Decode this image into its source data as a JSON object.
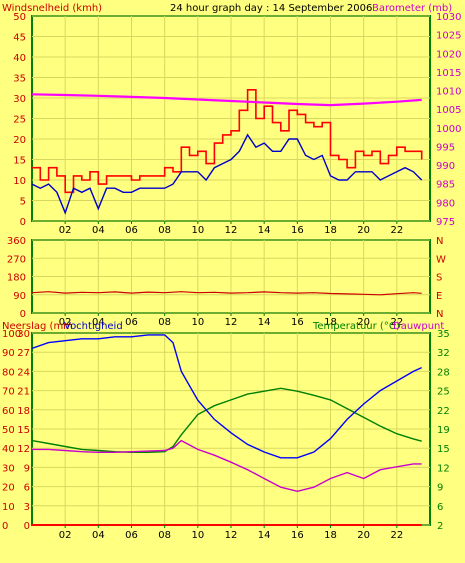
{
  "colors": {
    "background": "#FFFF80",
    "plot_bg": "#FFFF80",
    "frame": "#008000",
    "grid": "#D8D860",
    "gust": "#FF0000",
    "wind_avg": "#0000CC",
    "barometer": "#FF00FF",
    "wind_dir": "#CC0000",
    "humidity": "#0000FF",
    "temperature": "#008000",
    "dewpoint": "#CC00CC",
    "rain": "#FF0000",
    "axis_left": "#CC0000",
    "axis_right_top": "#CC00CC",
    "axis_right_bottom": "#008000",
    "text_dark": "#000000"
  },
  "header": {
    "left_label": "Windsnelheid (kmh)",
    "center_title": "24 hour graph day : 14 September 2006",
    "right_label": "Barometer (mb)"
  },
  "bottom_header": {
    "rain_label": "Neerslag (mm",
    "humidity_label": "Vochtigheid",
    "temp_label": "Temperatuur (°C)",
    "dew_label": "Dauwpunt"
  },
  "chart_data": [
    {
      "type": "line",
      "x_ticks": [
        "02",
        "04",
        "06",
        "08",
        "10",
        "12",
        "14",
        "16",
        "18",
        "20",
        "22"
      ],
      "y_left_ticks": [
        "0",
        "5",
        "10",
        "15",
        "20",
        "25",
        "30",
        "35",
        "40",
        "45",
        "50"
      ],
      "y_right_ticks": [
        "975",
        "980",
        "985",
        "990",
        "995",
        "1000",
        "1005",
        "1010",
        "1015",
        "1020",
        "1025",
        "1030"
      ],
      "ylim_left": [
        0,
        50
      ],
      "ylim_right": [
        975,
        1030
      ],
      "xlim": [
        0,
        24
      ],
      "series": [
        {
          "key": "gust",
          "x": [
            0,
            0.5,
            1,
            1.5,
            2,
            2.5,
            3,
            3.5,
            4,
            4.5,
            5,
            5.5,
            6,
            6.5,
            7,
            7.5,
            8,
            8.5,
            9,
            9.5,
            10,
            10.5,
            11,
            11.5,
            12,
            12.5,
            13,
            13.5,
            14,
            14.5,
            15,
            15.5,
            16,
            16.5,
            17,
            17.5,
            18,
            18.5,
            19,
            19.5,
            20,
            20.5,
            21,
            21.5,
            22,
            22.5,
            23,
            23.5
          ],
          "values": [
            13,
            10,
            13,
            11,
            7,
            11,
            10,
            12,
            9,
            11,
            11,
            11,
            10,
            11,
            11,
            11,
            13,
            12,
            18,
            16,
            17,
            14,
            19,
            21,
            22,
            27,
            32,
            25,
            28,
            24,
            22,
            27,
            26,
            24,
            23,
            24,
            16,
            15,
            13,
            17,
            16,
            17,
            14,
            16,
            18,
            17,
            17,
            15
          ]
        },
        {
          "key": "avg",
          "x": [
            0,
            0.5,
            1,
            1.5,
            2,
            2.5,
            3,
            3.5,
            4,
            4.5,
            5,
            5.5,
            6,
            6.5,
            7,
            7.5,
            8,
            8.5,
            9,
            9.5,
            10,
            10.5,
            11,
            11.5,
            12,
            12.5,
            13,
            13.5,
            14,
            14.5,
            15,
            15.5,
            16,
            16.5,
            17,
            17.5,
            18,
            18.5,
            19,
            19.5,
            20,
            20.5,
            21,
            21.5,
            22,
            22.5,
            23,
            23.5
          ],
          "values": [
            9,
            8,
            9,
            7,
            2,
            8,
            7,
            8,
            3,
            8,
            8,
            7,
            7,
            8,
            8,
            8,
            8,
            9,
            12,
            12,
            12,
            10,
            13,
            14,
            15,
            17,
            21,
            18,
            19,
            17,
            17,
            20,
            20,
            16,
            15,
            16,
            11,
            10,
            10,
            12,
            12,
            12,
            10,
            11,
            12,
            13,
            12,
            10
          ]
        },
        {
          "key": "barometer",
          "x": [
            0,
            2,
            4,
            6,
            8,
            10,
            12,
            14,
            16,
            18,
            20,
            22,
            23.5
          ],
          "values": [
            1009,
            1008.8,
            1008.6,
            1008.3,
            1008,
            1007.6,
            1007.2,
            1006.8,
            1006.4,
            1006.1,
            1006.5,
            1007,
            1007.5
          ]
        }
      ]
    },
    {
      "type": "line",
      "x_ticks": [
        "02",
        "04",
        "06",
        "08",
        "10",
        "12",
        "14",
        "16",
        "18",
        "20",
        "22"
      ],
      "y_left_ticks": [
        "0",
        "90",
        "180",
        "270",
        "360"
      ],
      "y_right_ticks": [
        "N",
        "E",
        "S",
        "W",
        "N"
      ],
      "ylim_left": [
        0,
        360
      ],
      "xlim": [
        0,
        24
      ],
      "series": [
        {
          "key": "wind_dir",
          "x": [
            0,
            1,
            2,
            3,
            4,
            5,
            6,
            7,
            8,
            9,
            10,
            11,
            12,
            13,
            14,
            15,
            16,
            17,
            18,
            19,
            20,
            21,
            22,
            23,
            23.5
          ],
          "values": [
            100,
            105,
            98,
            102,
            100,
            104,
            98,
            103,
            100,
            105,
            100,
            102,
            98,
            100,
            104,
            100,
            98,
            100,
            96,
            94,
            92,
            90,
            95,
            100,
            97
          ]
        }
      ]
    },
    {
      "type": "line",
      "x_ticks": [
        "02",
        "04",
        "06",
        "08",
        "10",
        "12",
        "14",
        "16",
        "18",
        "20",
        "22"
      ],
      "y_left_outer_ticks": [
        "0",
        "10",
        "20",
        "30",
        "40",
        "50",
        "60",
        "70",
        "80",
        "90",
        "100"
      ],
      "y_left_inner_ticks": [
        "0",
        "3",
        "6",
        "9",
        "12",
        "15",
        "18",
        "21",
        "24",
        "27",
        "30"
      ],
      "y_right_ticks": [
        "2",
        "6",
        "9",
        "12",
        "15",
        "19",
        "22",
        "25",
        "28",
        "32",
        "35"
      ],
      "ylim_humidity": [
        0,
        100
      ],
      "ylim_temp": [
        2,
        35
      ],
      "xlim": [
        0,
        24
      ],
      "series": [
        {
          "key": "humidity",
          "x": [
            0,
            1,
            2,
            3,
            4,
            5,
            6,
            7,
            8,
            8.5,
            9,
            10,
            11,
            12,
            13,
            14,
            15,
            16,
            17,
            18,
            19,
            20,
            21,
            22,
            23,
            23.5
          ],
          "values": [
            92,
            95,
            96,
            97,
            97,
            98,
            98,
            99,
            99,
            95,
            80,
            65,
            55,
            48,
            42,
            38,
            35,
            35,
            38,
            45,
            55,
            63,
            70,
            75,
            80,
            82
          ]
        },
        {
          "key": "temperature",
          "x": [
            0,
            1,
            2,
            3,
            4,
            5,
            6,
            7,
            8,
            8.5,
            9,
            10,
            11,
            12,
            13,
            14,
            15,
            16,
            17,
            18,
            19,
            20,
            21,
            22,
            23,
            23.5
          ],
          "values": [
            16.5,
            16,
            15.5,
            15,
            14.8,
            14.6,
            14.5,
            14.5,
            14.6,
            15.5,
            17.5,
            21,
            22.5,
            23.5,
            24.5,
            25,
            25.5,
            25,
            24.3,
            23.5,
            22,
            20.5,
            19,
            17.7,
            16.8,
            16.4
          ]
        },
        {
          "key": "dewpoint",
          "x": [
            0,
            1,
            2,
            3,
            4,
            5,
            6,
            7,
            8,
            8.5,
            9,
            10,
            11,
            12,
            13,
            14,
            15,
            16,
            17,
            18,
            19,
            20,
            21,
            22,
            23,
            23.5
          ],
          "values": [
            15,
            15,
            14.8,
            14.6,
            14.5,
            14.5,
            14.6,
            14.7,
            14.8,
            15.2,
            16.5,
            15,
            14,
            12.8,
            11.5,
            10,
            8.5,
            7.8,
            8.5,
            10,
            11,
            10,
            11.5,
            12,
            12.5,
            12.5
          ]
        },
        {
          "key": "rain",
          "x": [
            0,
            23.5
          ],
          "values": [
            0,
            0
          ]
        }
      ]
    }
  ]
}
